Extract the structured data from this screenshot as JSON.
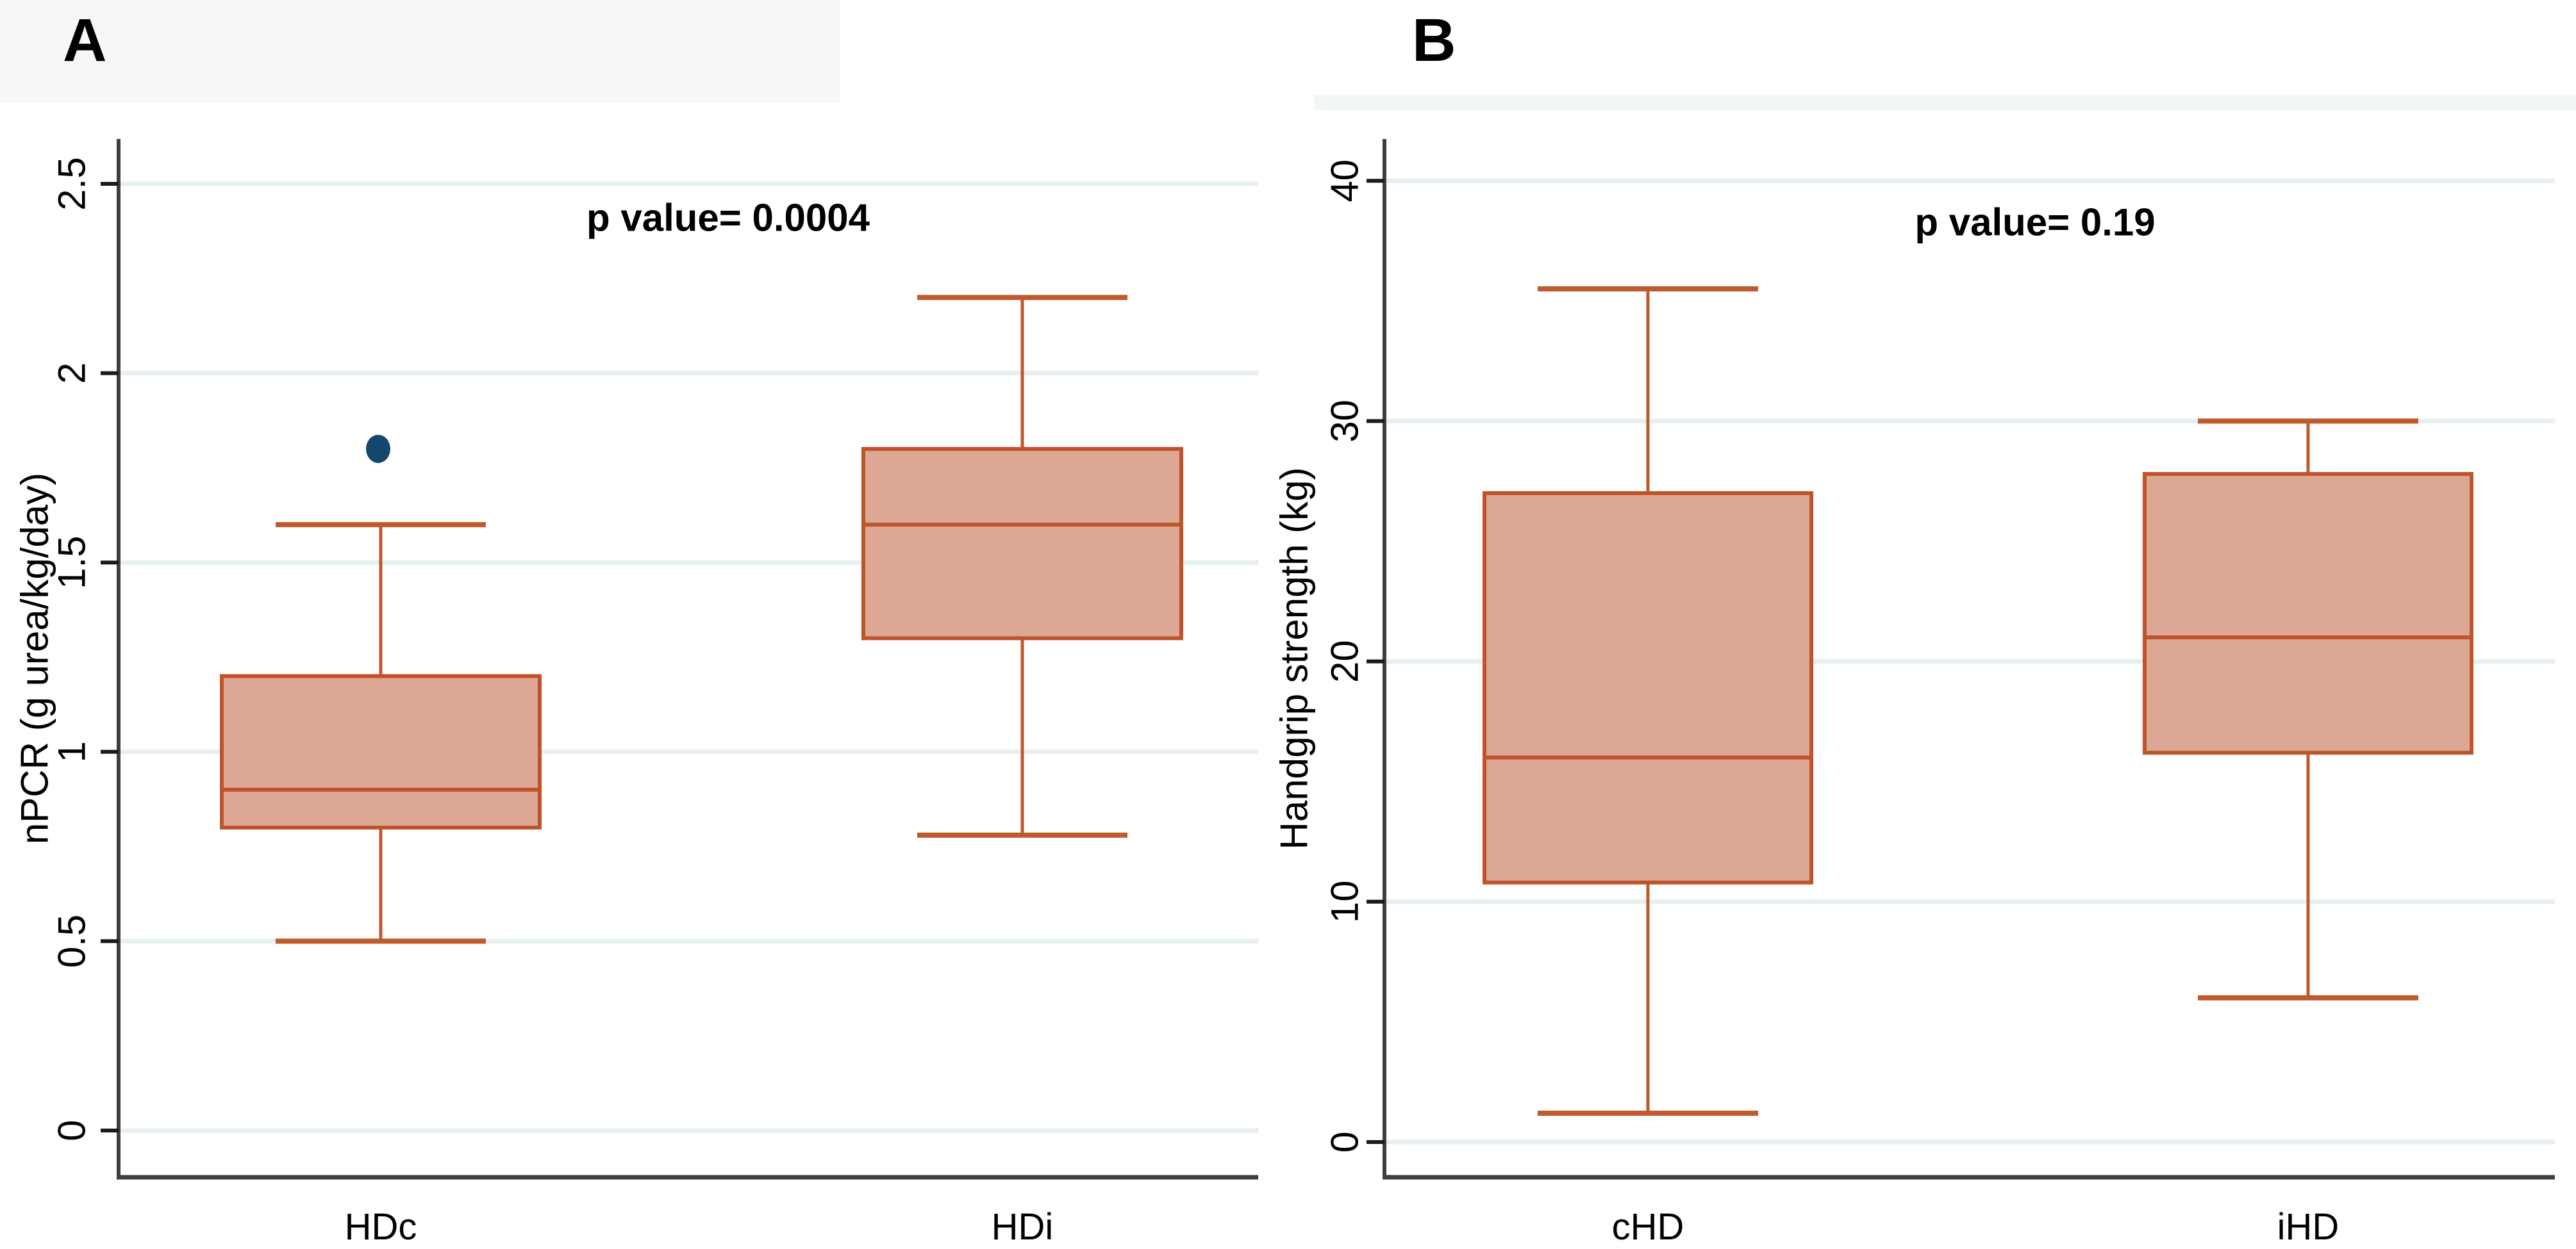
{
  "figure": {
    "panel_count": 2,
    "background": "#ffffff"
  },
  "colors": {
    "box_fill": "#dca794",
    "box_border": "#bf5329",
    "whisker": "#c05a2e",
    "outlier": "#15466b",
    "gridline": "#e6eff1",
    "axis_line": "#3e3e3e",
    "tick_mark": "#1a1a1a",
    "text": "#000000"
  },
  "chart_data": [
    {
      "type": "box",
      "panel_label": "A",
      "annotation": "p value= 0.0004",
      "title": "",
      "xlabel": "",
      "ylabel": "nPCR (g urea/kg/day)",
      "categories": [
        "HDc",
        "HDi"
      ],
      "yticks": [
        0,
        0.5,
        1,
        1.5,
        2,
        2.5
      ],
      "ytick_labels": [
        "0",
        "0.5",
        "1",
        "1.5",
        "2",
        "2.5"
      ],
      "ylim": [
        0,
        2.5
      ],
      "grid": true,
      "legend": null,
      "boxes": [
        {
          "category": "HDc",
          "whisker_low": 0.5,
          "q1": 0.8,
          "median": 0.9,
          "q3": 1.2,
          "whisker_high": 1.6,
          "outliers": [
            1.8
          ]
        },
        {
          "category": "HDi",
          "whisker_low": 0.78,
          "q1": 1.3,
          "median": 1.6,
          "q3": 1.8,
          "whisker_high": 2.2,
          "outliers": []
        }
      ]
    },
    {
      "type": "box",
      "panel_label": "B",
      "annotation": "p value= 0.19",
      "title": "",
      "xlabel": "",
      "ylabel": "Handgrip strength (kg)",
      "categories": [
        "cHD",
        "iHD"
      ],
      "yticks": [
        0,
        10,
        20,
        30,
        40
      ],
      "ytick_labels": [
        "0",
        "10",
        "20",
        "30",
        "40"
      ],
      "ylim": [
        0,
        40
      ],
      "grid": true,
      "legend": null,
      "boxes": [
        {
          "category": "cHD",
          "whisker_low": 1.2,
          "q1": 10.8,
          "median": 16,
          "q3": 27,
          "whisker_high": 35.5,
          "outliers": []
        },
        {
          "category": "iHD",
          "whisker_low": 6,
          "q1": 16.2,
          "median": 21,
          "q3": 27.8,
          "whisker_high": 30,
          "outliers": []
        }
      ]
    }
  ]
}
